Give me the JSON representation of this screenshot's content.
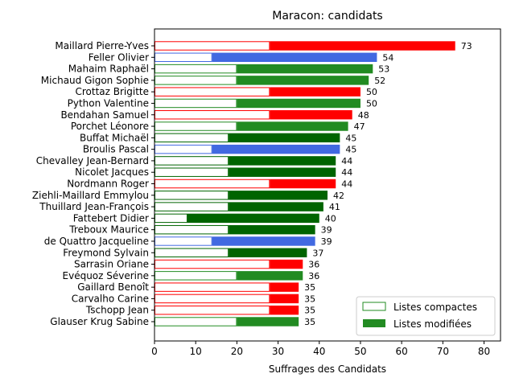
{
  "chart_data": {
    "type": "bar",
    "orientation": "horizontal",
    "stacked": true,
    "title": "Maracon: candidats",
    "xlabel": "Suffrages des Candidats",
    "ylabel": "",
    "xlim": [
      0,
      84
    ],
    "xticks": [
      0,
      10,
      20,
      30,
      40,
      50,
      60,
      70,
      80
    ],
    "grid": false,
    "legend_position": "bottom-right",
    "legend": [
      {
        "name": "Listes compactes",
        "style": "outline",
        "color": "#228b22"
      },
      {
        "name": "Listes modifiées",
        "style": "filled",
        "color": "#228b22"
      }
    ],
    "categories": [
      "Maillard Pierre-Yves",
      "Feller Olivier",
      "Mahaim Raphaël",
      "Michaud Gigon Sophie",
      "Crottaz Brigitte",
      "Python Valentine",
      "Bendahan Samuel",
      "Porchet Léonore",
      "Buffat Michaël",
      "Broulis Pascal",
      "Chevalley Jean-Bernard",
      "Nicolet Jacques",
      "Nordmann Roger",
      "Ziehli-Maillard Emmylou",
      "Thuillard Jean-François",
      "Fattebert Didier",
      "Treboux Maurice",
      "de Quattro Jacqueline",
      "Freymond Sylvain",
      "Sarrasin Oriane",
      "Evéquoz Séverine",
      "Gaillard Benoît",
      "Carvalho Carine",
      "Tschopp Jean",
      "Glauser Krug Sabine"
    ],
    "totals": [
      73,
      54,
      53,
      52,
      50,
      50,
      48,
      47,
      45,
      45,
      44,
      44,
      44,
      42,
      41,
      40,
      39,
      39,
      37,
      36,
      36,
      35,
      35,
      35,
      35
    ],
    "compact": [
      28,
      14,
      20,
      20,
      28,
      20,
      28,
      20,
      18,
      14,
      18,
      18,
      28,
      18,
      18,
      8,
      18,
      14,
      18,
      28,
      20,
      28,
      28,
      28,
      20
    ],
    "colors": [
      "#ff0000",
      "#4169e1",
      "#228b22",
      "#228b22",
      "#ff0000",
      "#228b22",
      "#ff0000",
      "#228b22",
      "#006400",
      "#4169e1",
      "#006400",
      "#006400",
      "#ff0000",
      "#006400",
      "#006400",
      "#006400",
      "#006400",
      "#4169e1",
      "#006400",
      "#ff0000",
      "#228b22",
      "#ff0000",
      "#ff0000",
      "#ff0000",
      "#228b22"
    ]
  }
}
